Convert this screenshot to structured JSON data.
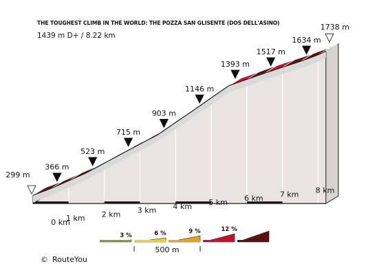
{
  "title": "THE TOUGHEST CLIMB IN THE WORLD: THE POZZA SAN GLISENTE (DOS DELL'ASINO)",
  "subtitle": "1439 m D+ / 8.22 km",
  "copyright": {
    "symbol": "©",
    "text": "RouteYou"
  },
  "chart_data": {
    "type": "area",
    "title": "THE TOUGHEST CLIMB IN THE WORLD: THE POZZA SAN GLISENTE (DOS DELL'ASINO)",
    "x_unit": "km",
    "y_unit": "m",
    "xlim": [
      0,
      8.22
    ],
    "x_ticks": [
      0,
      1,
      2,
      3,
      4,
      5,
      6,
      7,
      8
    ],
    "x_tick_labels": [
      "0 km",
      "1 km",
      "2 km",
      "3 km",
      "4 km",
      "5 km",
      "6 km",
      "7 km",
      "8 km"
    ],
    "start": {
      "x": 0,
      "elevation": 299,
      "label": "299 m"
    },
    "end": {
      "x": 8.22,
      "elevation": 1738,
      "label": "1738 m"
    },
    "markers": [
      {
        "x": 0.5,
        "elevation": 366,
        "label": "366 m"
      },
      {
        "x": 1.5,
        "elevation": 523,
        "label": "523 m"
      },
      {
        "x": 2.5,
        "elevation": 715,
        "label": "715 m"
      },
      {
        "x": 3.5,
        "elevation": 903,
        "label": "903 m"
      },
      {
        "x": 4.5,
        "elevation": 1146,
        "label": "1146 m"
      },
      {
        "x": 5.5,
        "elevation": 1393,
        "label": "1393 m"
      },
      {
        "x": 6.5,
        "elevation": 1517,
        "label": "1517 m"
      },
      {
        "x": 7.5,
        "elevation": 1634,
        "label": "1634 m"
      }
    ],
    "segments": [
      {
        "from": 0.0,
        "to": 0.5,
        "from_elevation": 299,
        "to_elevation": 366,
        "color": "#5a1111"
      },
      {
        "from": 0.5,
        "to": 1.0,
        "from_elevation": 366,
        "to_elevation": 444,
        "color": "#5a1111"
      },
      {
        "from": 1.0,
        "to": 1.5,
        "from_elevation": 444,
        "to_elevation": 523,
        "color": "#5a1111"
      },
      {
        "from": 1.5,
        "to": 2.0,
        "from_elevation": 523,
        "to_elevation": 619,
        "color": "#5a1111"
      },
      {
        "from": 2.0,
        "to": 2.5,
        "from_elevation": 619,
        "to_elevation": 715,
        "color": "#5a1111"
      },
      {
        "from": 2.5,
        "to": 3.0,
        "from_elevation": 715,
        "to_elevation": 809,
        "color": "#5a1111"
      },
      {
        "from": 3.0,
        "to": 3.5,
        "from_elevation": 809,
        "to_elevation": 903,
        "color": "#5a1111"
      },
      {
        "from": 3.5,
        "to": 4.0,
        "from_elevation": 903,
        "to_elevation": 1025,
        "color": "#5a1111"
      },
      {
        "from": 4.0,
        "to": 4.5,
        "from_elevation": 1025,
        "to_elevation": 1146,
        "color": "#5a1111"
      },
      {
        "from": 4.5,
        "to": 5.0,
        "from_elevation": 1146,
        "to_elevation": 1270,
        "color": "#5a1111"
      },
      {
        "from": 5.0,
        "to": 5.5,
        "from_elevation": 1270,
        "to_elevation": 1393,
        "color": "#5a1111"
      },
      {
        "from": 5.5,
        "to": 6.0,
        "from_elevation": 1393,
        "to_elevation": 1455,
        "color": "#c8102e"
      },
      {
        "from": 6.0,
        "to": 6.5,
        "from_elevation": 1455,
        "to_elevation": 1517,
        "color": "#5a1111"
      },
      {
        "from": 6.5,
        "to": 7.0,
        "from_elevation": 1517,
        "to_elevation": 1576,
        "color": "#c8102e"
      },
      {
        "from": 7.0,
        "to": 7.5,
        "from_elevation": 1576,
        "to_elevation": 1634,
        "color": "#5a1111"
      },
      {
        "from": 7.5,
        "to": 8.0,
        "from_elevation": 1634,
        "to_elevation": 1700,
        "color": "#5a1111"
      },
      {
        "from": 8.0,
        "to": 8.22,
        "from_elevation": 1700,
        "to_elevation": 1738,
        "color": "#8a9a2a"
      }
    ],
    "legend": {
      "scale_label": "500 m",
      "items": [
        {
          "label": "3 %",
          "color": "#8a9a2a"
        },
        {
          "label": "6 %",
          "color": "#f2d21b"
        },
        {
          "label": "9 %",
          "color": "#e8a21b"
        },
        {
          "label": "12 %",
          "color": "#c8102e"
        },
        {
          "label": "",
          "color": "#5a1111"
        }
      ]
    },
    "colors": {
      "fill": "#e9e3e1",
      "ribbon_side": "#cfcfcf",
      "outline": "#1a1a1a"
    }
  }
}
